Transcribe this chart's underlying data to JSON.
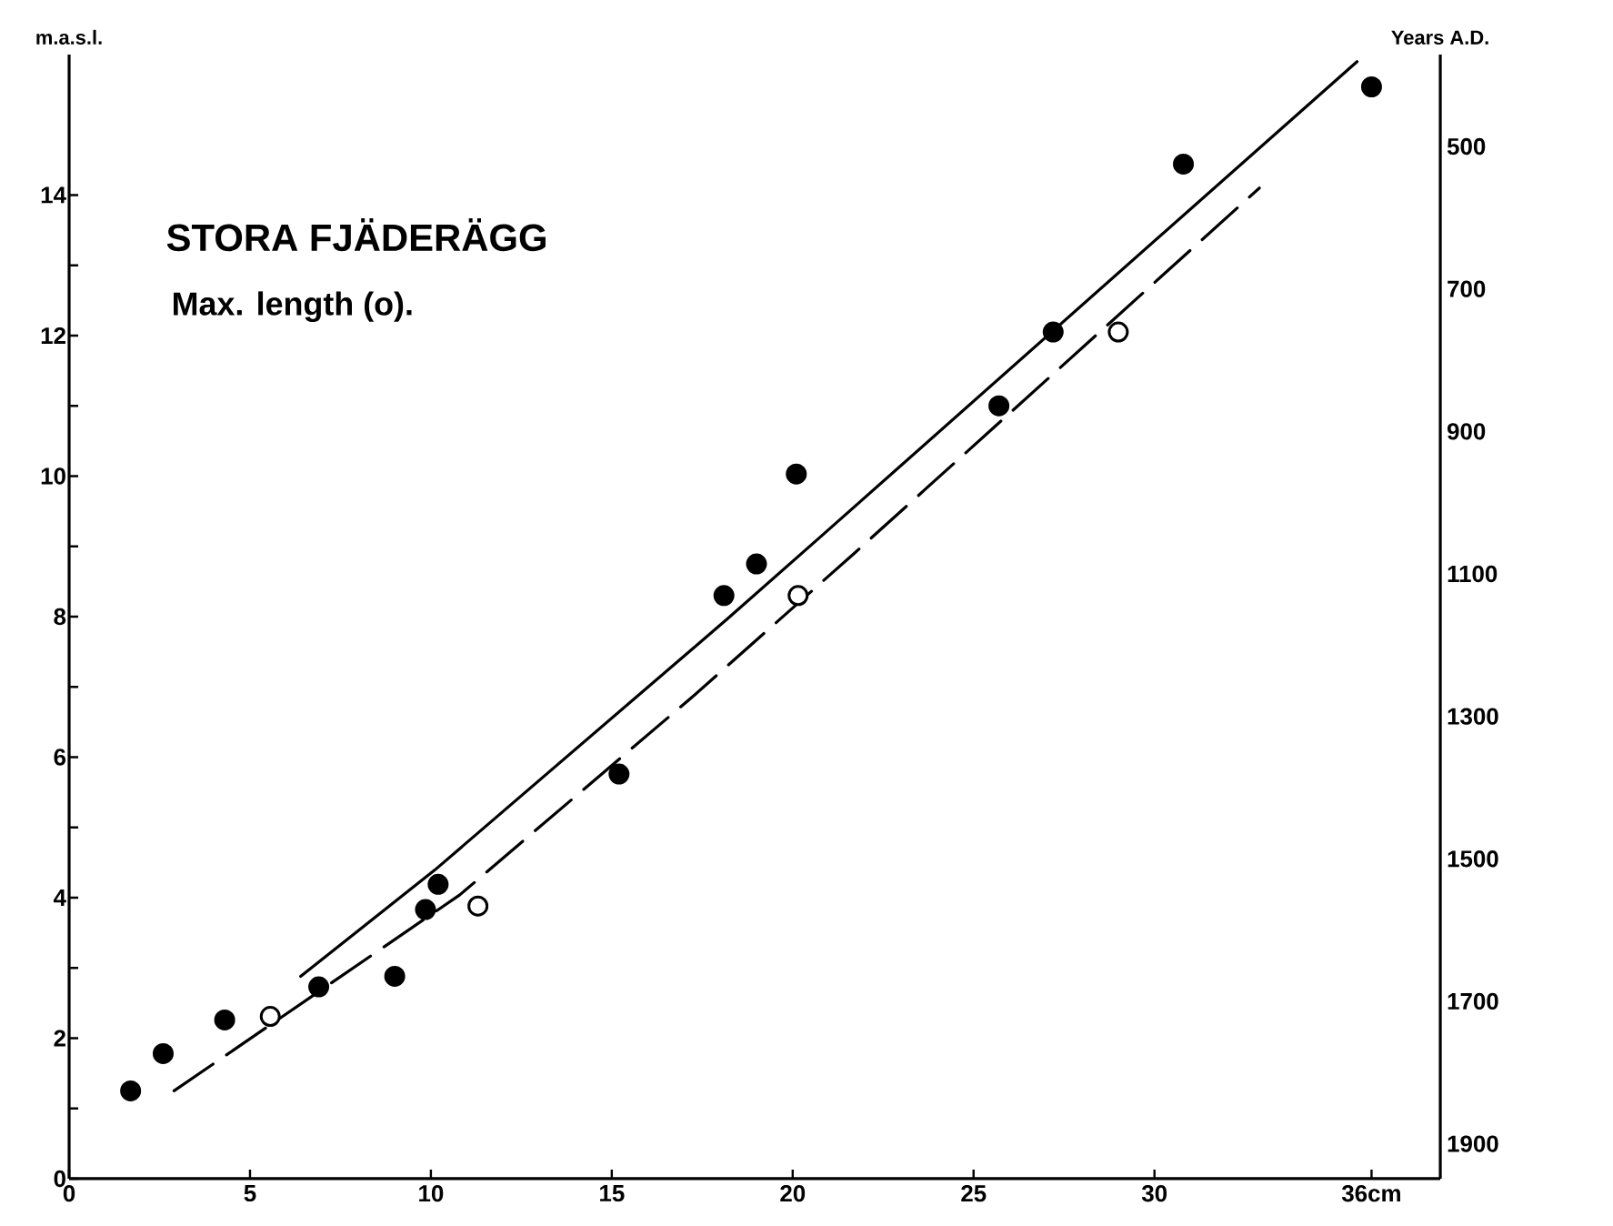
{
  "chart_data": {
    "type": "scatter",
    "title": "STORA FJÄDERÄGG",
    "subtitle": "Max. length (o).",
    "ylabel": "m.a.s.l.",
    "y2label": "Years A.D.",
    "xlim": [
      0,
      37.9
    ],
    "ylim": [
      0,
      16
    ],
    "y2lim": [
      1949,
      371
    ],
    "xticks": [
      0,
      5,
      10,
      15,
      20,
      25,
      30,
      {
        "value": 36,
        "label": "36cm"
      }
    ],
    "yticks": [
      0,
      {
        "value": 1,
        "label": null
      },
      2,
      {
        "value": 3,
        "label": null
      },
      4,
      {
        "value": 5,
        "label": null
      },
      6,
      {
        "value": 7,
        "label": null
      },
      8,
      {
        "value": 9,
        "label": null
      },
      10,
      {
        "value": 11,
        "label": null
      },
      12,
      {
        "value": 13,
        "label": null
      },
      14
    ],
    "y2ticks": [
      500,
      700,
      900,
      1100,
      1300,
      1500,
      1700,
      1900
    ],
    "series": [
      {
        "type": "scatter",
        "marker": "circle",
        "color": "#000000",
        "x": [
          1.7,
          2.6,
          4.3,
          6.9,
          9.0,
          9.85,
          10.2,
          15.2,
          18.1,
          19.0,
          20.1,
          25.7,
          27.2,
          30.8,
          36.0
        ],
        "values": [
          1.25,
          1.78,
          2.26,
          2.73,
          2.88,
          3.83,
          4.19,
          5.76,
          8.3,
          8.75,
          10.03,
          11.0,
          12.05,
          14.44,
          15.54
        ]
      },
      {
        "type": "scatter",
        "marker": "circle",
        "color": "#ffffff",
        "x": [
          5.56,
          11.3,
          20.15,
          29.0
        ],
        "values": [
          2.31,
          3.88,
          8.3,
          12.05
        ]
      },
      {
        "type": "line",
        "marker": "none",
        "line_style": "solid",
        "color": "#000000",
        "x": [
          6.4,
          10.1,
          18.2,
          20.8,
          35.6
        ],
        "values": [
          2.88,
          4.39,
          7.97,
          9.15,
          15.9
        ]
      },
      {
        "type": "line",
        "marker": "none",
        "line_style": "dashed",
        "color": "#000000",
        "x": [
          2.9,
          10.8,
          17.3,
          21.7,
          32.9
        ],
        "values": [
          1.25,
          4.04,
          6.89,
          8.9,
          14.1
        ]
      }
    ]
  }
}
